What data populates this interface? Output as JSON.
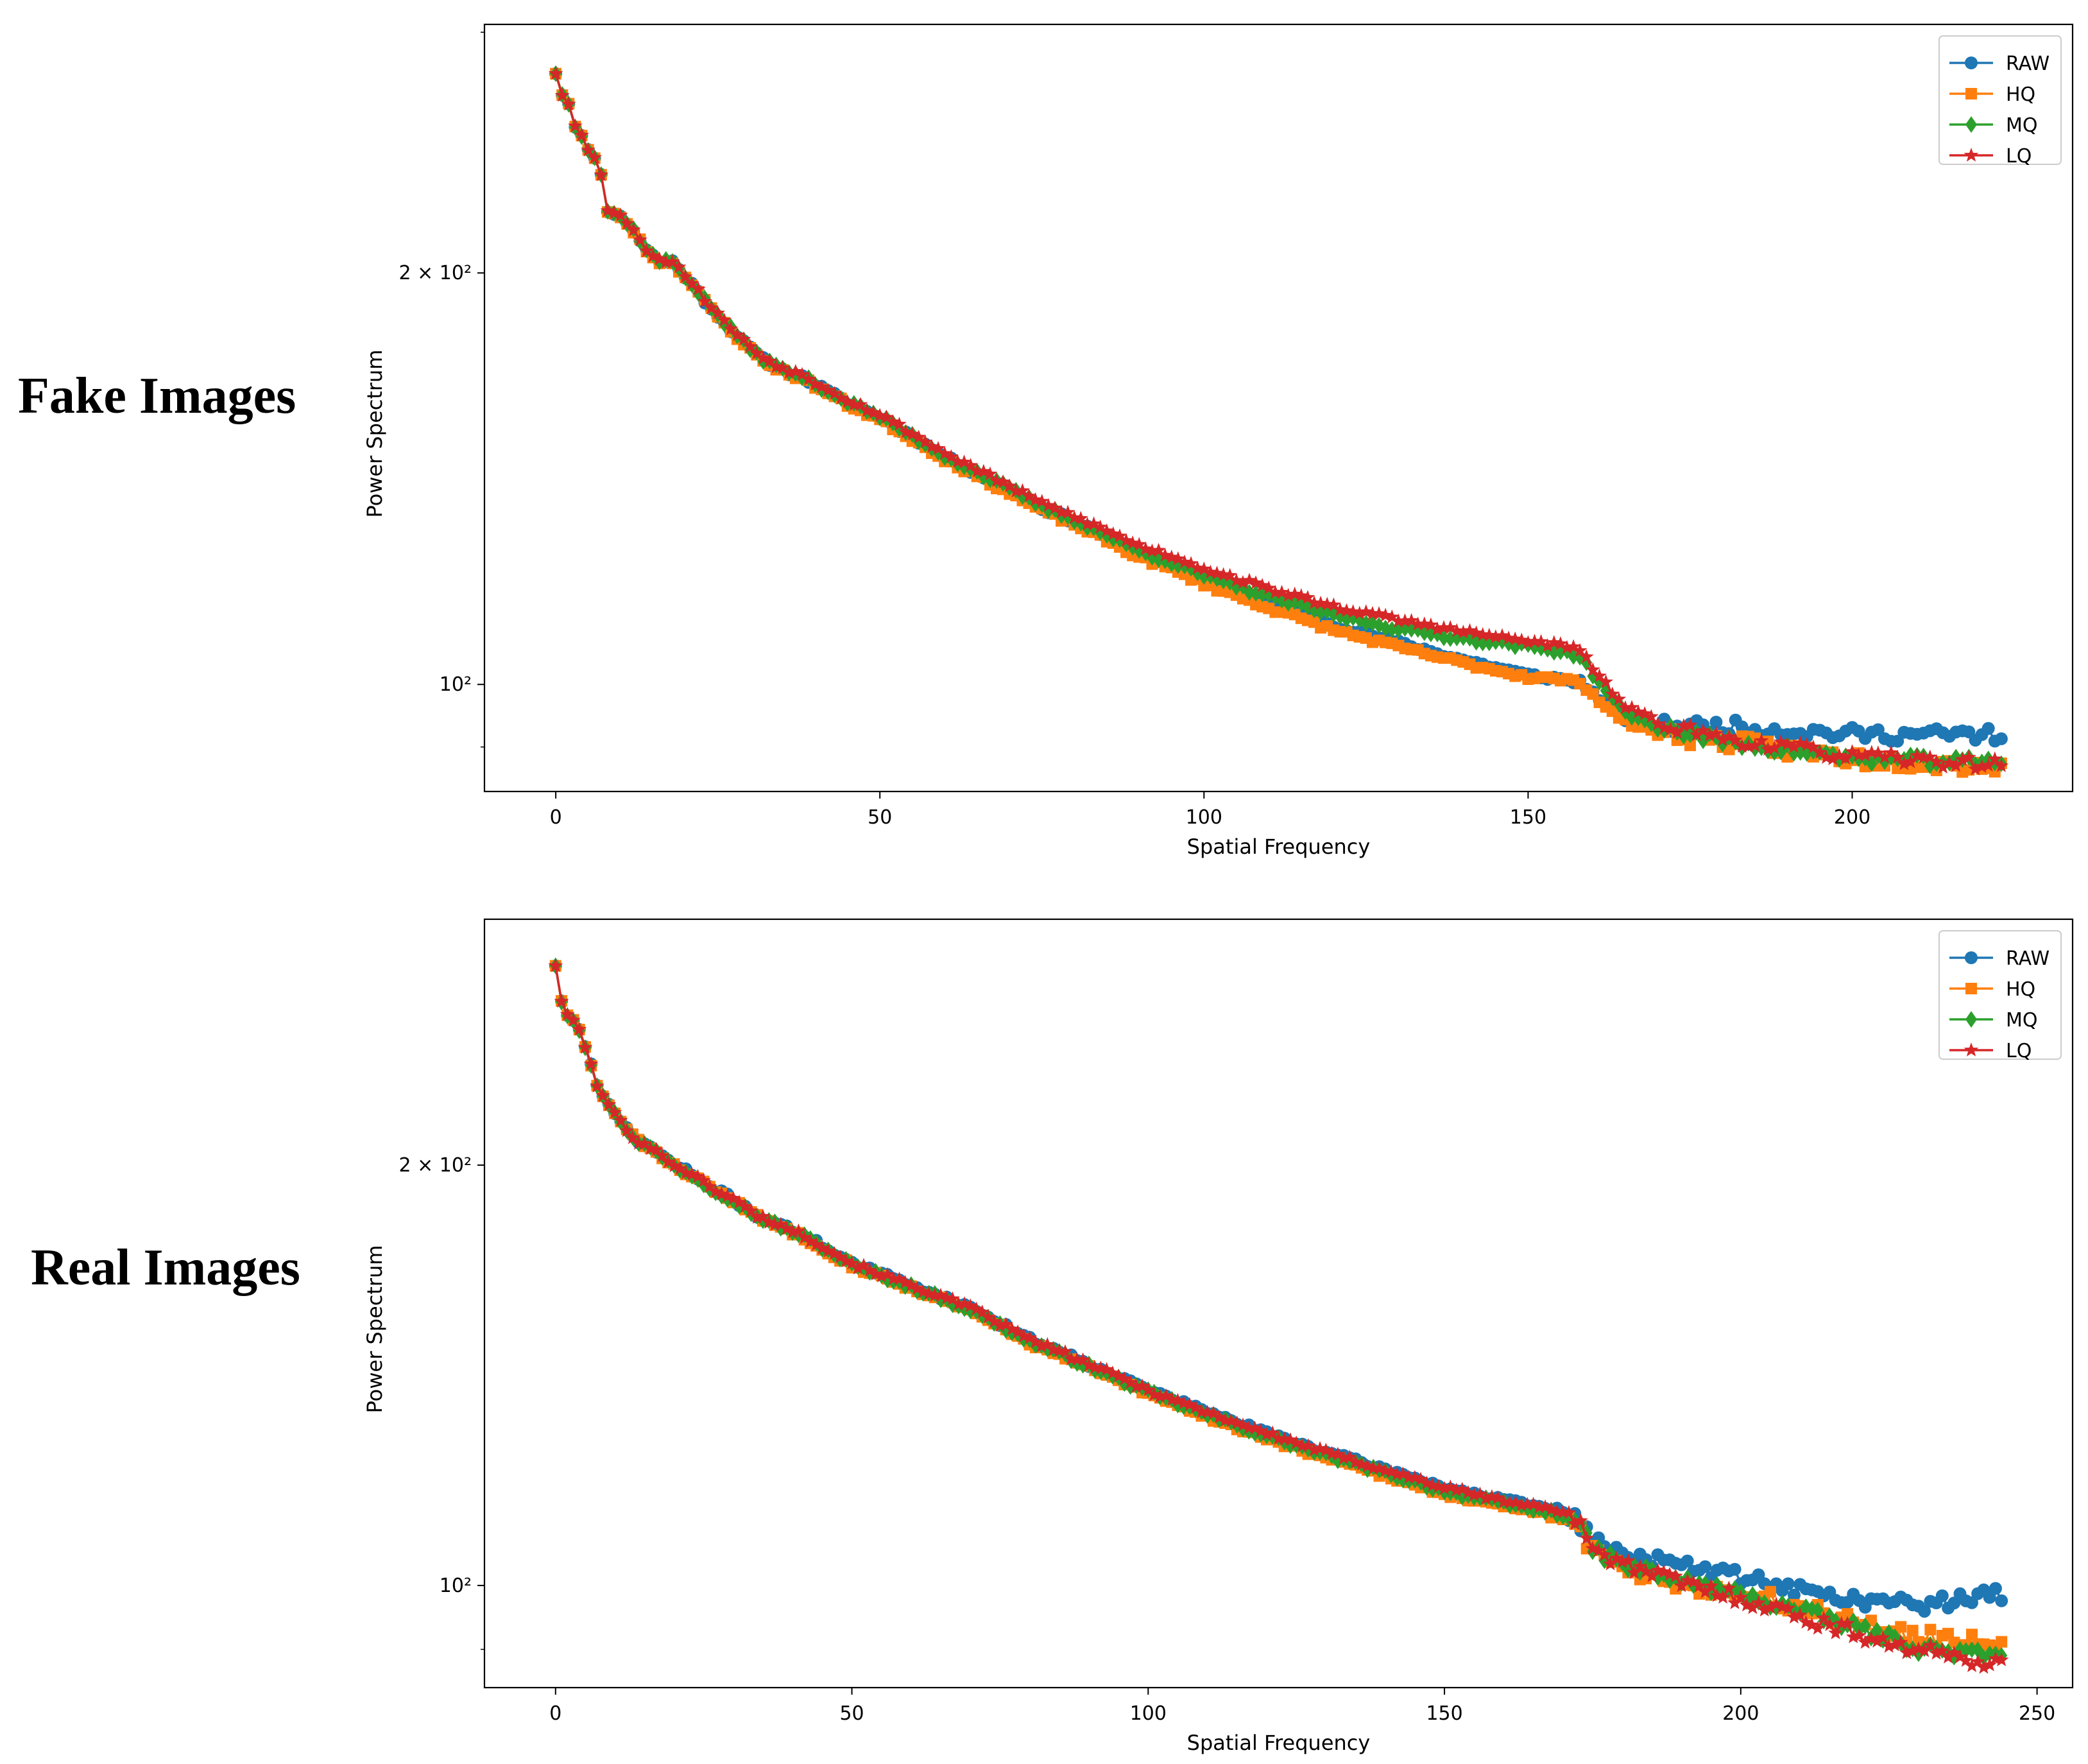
{
  "row_labels": {
    "top": "Fake Images",
    "bottom": "Real Images"
  },
  "colors": {
    "RAW": "#1f77b4",
    "HQ": "#ff7f0e",
    "MQ": "#2ca02c",
    "LQ": "#d62728"
  },
  "chart_data": [
    {
      "type": "line",
      "title": "",
      "xlabel": "Spatial Frequency",
      "ylabel": "Power Spectrum",
      "yscale": "log",
      "xlim": [
        -11,
        234
      ],
      "ylim": [
        83.5,
        304
      ],
      "xticks": [
        0,
        50,
        100,
        150,
        200
      ],
      "yticks": [
        {
          "value": 100,
          "label": "10²"
        },
        {
          "value": 200,
          "label": "2 × 10²"
        }
      ],
      "legend": {
        "position": "top-right",
        "entries": [
          "RAW",
          "HQ",
          "MQ",
          "LQ"
        ]
      },
      "x_range": [
        0,
        223
      ],
      "curve": [
        [
          0,
          280
        ],
        [
          1,
          270
        ],
        [
          2,
          266
        ],
        [
          3,
          256
        ],
        [
          4,
          252
        ],
        [
          5,
          246
        ],
        [
          6,
          243
        ],
        [
          7,
          236
        ],
        [
          8,
          222
        ],
        [
          10,
          220
        ],
        [
          12,
          215
        ],
        [
          14,
          208
        ],
        [
          16,
          204
        ],
        [
          18,
          204
        ],
        [
          20,
          199
        ],
        [
          23,
          191
        ],
        [
          26,
          184
        ],
        [
          29,
          178
        ],
        [
          32,
          173
        ],
        [
          35,
          170
        ],
        [
          38,
          168
        ],
        [
          41,
          165
        ],
        [
          45,
          161
        ],
        [
          50,
          157
        ],
        [
          55,
          152
        ],
        [
          60,
          147
        ],
        [
          65,
          143
        ],
        [
          70,
          139
        ],
        [
          75,
          135
        ],
        [
          80,
          132
        ],
        [
          85,
          129
        ],
        [
          90,
          126
        ],
        [
          95,
          124
        ],
        [
          100,
          121.5
        ],
        [
          110,
          117.5
        ],
        [
          120,
          114
        ],
        [
          130,
          111.5
        ],
        [
          140,
          109.3
        ],
        [
          150,
          107.5
        ],
        [
          155,
          106.8
        ],
        [
          158,
          106
        ],
        [
          160,
          103
        ],
        [
          163,
          99
        ],
        [
          165,
          96.8
        ],
        [
          170,
          94.8
        ],
        [
          180,
          93.2
        ],
        [
          200,
          91.5
        ],
        [
          223,
          90.5
        ]
      ],
      "series": [
        {
          "name": "RAW",
          "marker": "circle",
          "offsets": [
            [
              0,
              1
            ],
            [
              80,
              0.997
            ],
            [
              100,
              0.985
            ],
            [
              130,
              0.962
            ],
            [
              150,
              0.945
            ],
            [
              157,
              0.945
            ],
            [
              165,
              0.975
            ],
            [
              180,
              1.0
            ],
            [
              200,
              1.005
            ],
            [
              223,
              1.015
            ]
          ],
          "noise": 0.004,
          "late_noise": 0.012,
          "seed": 11
        },
        {
          "name": "HQ",
          "marker": "square",
          "offsets": [
            [
              0,
              1
            ],
            [
              80,
              0.992
            ],
            [
              100,
              0.975
            ],
            [
              130,
              0.955
            ],
            [
              150,
              0.942
            ],
            [
              157,
              0.945
            ],
            [
              165,
              0.97
            ],
            [
              180,
              0.975
            ],
            [
              200,
              0.965
            ],
            [
              223,
              0.962
            ]
          ],
          "noise": 0.004,
          "late_noise": 0.014,
          "seed": 23
        },
        {
          "name": "MQ",
          "marker": "diamond",
          "offsets": [
            [
              0,
              1
            ],
            [
              80,
              1.0
            ],
            [
              100,
              0.988
            ],
            [
              130,
              0.985
            ],
            [
              150,
              0.992
            ],
            [
              157,
              0.99
            ],
            [
              165,
              0.985
            ],
            [
              180,
              0.975
            ],
            [
              200,
              0.965
            ],
            [
              223,
              0.968
            ]
          ],
          "noise": 0.004,
          "late_noise": 0.009,
          "seed": 37
        },
        {
          "name": "LQ",
          "marker": "star",
          "offsets": [
            [
              0,
              1
            ],
            [
              80,
              1.005
            ],
            [
              100,
              1.0
            ],
            [
              130,
              1.0
            ],
            [
              150,
              1.0
            ],
            [
              157,
              1.0
            ],
            [
              165,
              0.995
            ],
            [
              180,
              0.98
            ],
            [
              200,
              0.968
            ],
            [
              223,
              0.965
            ]
          ],
          "noise": 0.004,
          "late_noise": 0.01,
          "seed": 53
        }
      ]
    },
    {
      "type": "line",
      "title": "",
      "xlabel": "Spatial Frequency",
      "ylabel": "Power Spectrum",
      "yscale": "log",
      "xlim": [
        -12,
        256
      ],
      "ylim": [
        84.5,
        300
      ],
      "xticks": [
        0,
        50,
        100,
        150,
        200,
        250
      ],
      "yticks": [
        {
          "value": 100,
          "label": "10²"
        },
        {
          "value": 200,
          "label": "2 × 10²"
        }
      ],
      "legend": {
        "position": "top-right",
        "entries": [
          "RAW",
          "HQ",
          "MQ",
          "LQ"
        ]
      },
      "x_range": [
        0,
        244
      ],
      "curve": [
        [
          0,
          278
        ],
        [
          1,
          262
        ],
        [
          2,
          256
        ],
        [
          3,
          254
        ],
        [
          4,
          250
        ],
        [
          5,
          243
        ],
        [
          6,
          236
        ],
        [
          7,
          228
        ],
        [
          8,
          224
        ],
        [
          10,
          218
        ],
        [
          12,
          212
        ],
        [
          14,
          208
        ],
        [
          16,
          206
        ],
        [
          18,
          203
        ],
        [
          20,
          200
        ],
        [
          23,
          197
        ],
        [
          26,
          193
        ],
        [
          30,
          189
        ],
        [
          34,
          184
        ],
        [
          38,
          181
        ],
        [
          42,
          178
        ],
        [
          46,
          174
        ],
        [
          50,
          170
        ],
        [
          55,
          167
        ],
        [
          60,
          164
        ],
        [
          65,
          161
        ],
        [
          70,
          158
        ],
        [
          75,
          154
        ],
        [
          80,
          150
        ],
        [
          85,
          147
        ],
        [
          90,
          144
        ],
        [
          95,
          141
        ],
        [
          100,
          138
        ],
        [
          110,
          133
        ],
        [
          120,
          128.5
        ],
        [
          130,
          124.5
        ],
        [
          140,
          121
        ],
        [
          150,
          117.5
        ],
        [
          160,
          115
        ],
        [
          165,
          114
        ],
        [
          170,
          113
        ],
        [
          172,
          112
        ],
        [
          175,
          107
        ],
        [
          180,
          104.5
        ],
        [
          190,
          102
        ],
        [
          200,
          100
        ],
        [
          215,
          97
        ],
        [
          230,
          94
        ],
        [
          244,
          93
        ]
      ],
      "series": [
        {
          "name": "RAW",
          "marker": "circle",
          "offsets": [
            [
              0,
              1
            ],
            [
              150,
              1.0
            ],
            [
              172,
              1.0
            ],
            [
              180,
              1.01
            ],
            [
              200,
              1.015
            ],
            [
              215,
              1.012
            ],
            [
              230,
              1.03
            ],
            [
              244,
              1.06
            ]
          ],
          "noise": 0.004,
          "late_noise": 0.012,
          "seed": 71
        },
        {
          "name": "HQ",
          "marker": "square",
          "offsets": [
            [
              0,
              1
            ],
            [
              150,
              0.99
            ],
            [
              172,
              0.99
            ],
            [
              180,
              0.985
            ],
            [
              200,
              0.985
            ],
            [
              215,
              0.985
            ],
            [
              230,
              0.975
            ],
            [
              244,
              0.985
            ]
          ],
          "noise": 0.004,
          "late_noise": 0.015,
          "seed": 83
        },
        {
          "name": "MQ",
          "marker": "diamond",
          "offsets": [
            [
              0,
              1
            ],
            [
              150,
              0.995
            ],
            [
              172,
              0.995
            ],
            [
              180,
              0.99
            ],
            [
              200,
              0.985
            ],
            [
              215,
              0.975
            ],
            [
              230,
              0.96
            ],
            [
              244,
              0.955
            ]
          ],
          "noise": 0.004,
          "late_noise": 0.01,
          "seed": 97
        },
        {
          "name": "LQ",
          "marker": "star",
          "offsets": [
            [
              0,
              1
            ],
            [
              150,
              1.0
            ],
            [
              172,
              1.0
            ],
            [
              180,
              0.99
            ],
            [
              200,
              0.98
            ],
            [
              215,
              0.965
            ],
            [
              230,
              0.955
            ],
            [
              244,
              0.945
            ]
          ],
          "noise": 0.004,
          "late_noise": 0.012,
          "seed": 101
        }
      ]
    }
  ]
}
